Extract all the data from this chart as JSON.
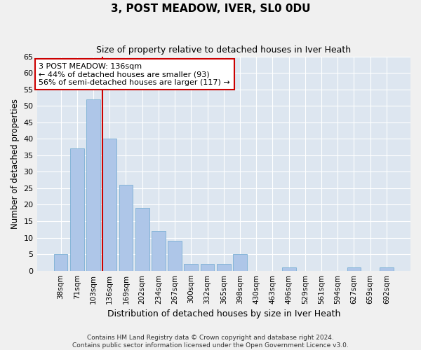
{
  "title": "3, POST MEADOW, IVER, SL0 0DU",
  "subtitle": "Size of property relative to detached houses in Iver Heath",
  "xlabel": "Distribution of detached houses by size in Iver Heath",
  "ylabel": "Number of detached properties",
  "categories": [
    "38sqm",
    "71sqm",
    "103sqm",
    "136sqm",
    "169sqm",
    "202sqm",
    "234sqm",
    "267sqm",
    "300sqm",
    "332sqm",
    "365sqm",
    "398sqm",
    "430sqm",
    "463sqm",
    "496sqm",
    "529sqm",
    "561sqm",
    "594sqm",
    "627sqm",
    "659sqm",
    "692sqm"
  ],
  "values": [
    5,
    37,
    52,
    40,
    26,
    19,
    12,
    9,
    2,
    2,
    2,
    5,
    0,
    0,
    1,
    0,
    0,
    0,
    1,
    0,
    1
  ],
  "bar_color": "#aec6e8",
  "bar_edge_color": "#7aafd4",
  "vline_index": 3,
  "vline_color": "#cc0000",
  "annotation_text": "3 POST MEADOW: 136sqm\n← 44% of detached houses are smaller (93)\n56% of semi-detached houses are larger (117) →",
  "annotation_box_color": "#ffffff",
  "annotation_box_edge": "#cc0000",
  "background_color": "#dde6f0",
  "grid_color": "#ffffff",
  "fig_background": "#f0f0f0",
  "ylim": [
    0,
    65
  ],
  "yticks": [
    0,
    5,
    10,
    15,
    20,
    25,
    30,
    35,
    40,
    45,
    50,
    55,
    60,
    65
  ],
  "footer1": "Contains HM Land Registry data © Crown copyright and database right 2024.",
  "footer2": "Contains public sector information licensed under the Open Government Licence v3.0."
}
